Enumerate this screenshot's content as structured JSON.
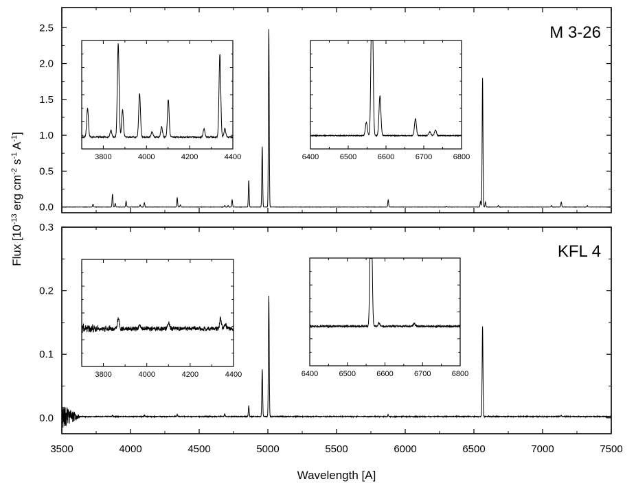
{
  "figure": {
    "xlabel": "Wavelength [A]",
    "ylabel": "Flux [10^-13 erg cm^-2 s^-1 A^-1]",
    "ylabel_parts": [
      {
        "t": "Flux [10",
        "sup": false
      },
      {
        "t": "-13",
        "sup": true
      },
      {
        "t": " erg cm",
        "sup": false
      },
      {
        "t": "-2",
        "sup": true
      },
      {
        "t": " s",
        "sup": false
      },
      {
        "t": "-1",
        "sup": true
      },
      {
        "t": " A",
        "sup": false
      },
      {
        "t": "-1",
        "sup": true
      },
      {
        "t": "]",
        "sup": false
      }
    ]
  },
  "chart_data": [
    {
      "type": "line",
      "panel": "top",
      "title": "M 3-26",
      "xlabel": "Wavelength [A]",
      "ylabel": "Flux [10^-13 erg cm^-2 s^-1 A^-1]",
      "xlim": [
        3500,
        7500
      ],
      "ylim": [
        -0.08,
        2.78
      ],
      "xticks": [
        3500,
        4000,
        4500,
        5000,
        5500,
        6000,
        6500,
        7000,
        7500
      ],
      "yticks": [
        0.0,
        0.5,
        1.0,
        1.5,
        2.0,
        2.5
      ],
      "ytick_labels": [
        "0.0",
        "0.5",
        "1.0",
        "1.5",
        "2.0",
        "2.5"
      ],
      "grid": false,
      "baseline": 0.0,
      "noise": 0.002,
      "line_width": 3,
      "lines": [
        {
          "x": 3727,
          "y": 0.04
        },
        {
          "x": 3869,
          "y": 0.18
        },
        {
          "x": 3889,
          "y": 0.05
        },
        {
          "x": 3968,
          "y": 0.08
        },
        {
          "x": 4070,
          "y": 0.03
        },
        {
          "x": 4101,
          "y": 0.06
        },
        {
          "x": 4340,
          "y": 0.13
        },
        {
          "x": 4363,
          "y": 0.03
        },
        {
          "x": 4686,
          "y": 0.02
        },
        {
          "x": 4711,
          "y": 0.02
        },
        {
          "x": 4740,
          "y": 0.1
        },
        {
          "x": 4861,
          "y": 0.37
        },
        {
          "x": 4959,
          "y": 0.84
        },
        {
          "x": 5007,
          "y": 2.48
        },
        {
          "x": 5876,
          "y": 0.1
        },
        {
          "x": 6300,
          "y": 0.01
        },
        {
          "x": 6548,
          "y": 0.08
        },
        {
          "x": 6563,
          "y": 1.8
        },
        {
          "x": 6584,
          "y": 0.07
        },
        {
          "x": 6678,
          "y": 0.02
        },
        {
          "x": 7065,
          "y": 0.02
        },
        {
          "x": 7136,
          "y": 0.07
        },
        {
          "x": 7325,
          "y": 0.02
        }
      ],
      "insets": [
        {
          "xlim": [
            3700,
            4400
          ],
          "ylim": [
            -0.02,
            0.62
          ],
          "xticks": [
            3800,
            4000,
            4200,
            4400
          ],
          "baseline": 0.05,
          "noise": 0.004,
          "line_width": 4,
          "lines": [
            {
              "x": 3727,
              "y": 0.17
            },
            {
              "x": 3835,
              "y": 0.04
            },
            {
              "x": 3869,
              "y": 0.55
            },
            {
              "x": 3889,
              "y": 0.16
            },
            {
              "x": 3968,
              "y": 0.26
            },
            {
              "x": 4026,
              "y": 0.03
            },
            {
              "x": 4070,
              "y": 0.06
            },
            {
              "x": 4101,
              "y": 0.22
            },
            {
              "x": 4267,
              "y": 0.05
            },
            {
              "x": 4340,
              "y": 0.49
            },
            {
              "x": 4363,
              "y": 0.05
            }
          ]
        },
        {
          "xlim": [
            6400,
            6800
          ],
          "ylim": [
            -0.02,
            0.55
          ],
          "xticks": [
            6400,
            6500,
            6600,
            6700,
            6800
          ],
          "baseline": 0.05,
          "noise": 0.002,
          "line_width": 2.5,
          "lines": [
            {
              "x": 6548,
              "y": 0.07
            },
            {
              "x": 6563,
              "y": 0.9
            },
            {
              "x": 6584,
              "y": 0.21
            },
            {
              "x": 6678,
              "y": 0.09
            },
            {
              "x": 6716,
              "y": 0.02
            },
            {
              "x": 6731,
              "y": 0.03
            }
          ]
        }
      ]
    },
    {
      "type": "line",
      "panel": "bottom",
      "title": "KFL 4",
      "xlabel": "Wavelength [A]",
      "ylabel": "Flux [10^-13 erg cm^-2 s^-1 A^-1]",
      "xlim": [
        3500,
        7500
      ],
      "ylim": [
        -0.025,
        0.3
      ],
      "xticks": [
        3500,
        4000,
        4500,
        5000,
        5500,
        6000,
        6500,
        7000,
        7500
      ],
      "yticks": [
        0.0,
        0.1,
        0.2,
        0.3
      ],
      "ytick_labels": [
        "0.0",
        "0.1",
        "0.2",
        "0.3"
      ],
      "grid": false,
      "baseline": 0.002,
      "noise": 0.0006,
      "blue_noise": {
        "x_end": 3640,
        "amplitude": 0.02
      },
      "line_width": 3,
      "lines": [
        {
          "x": 3869,
          "y": 0.002
        },
        {
          "x": 4101,
          "y": 0.002
        },
        {
          "x": 4340,
          "y": 0.003
        },
        {
          "x": 4686,
          "y": 0.004
        },
        {
          "x": 4861,
          "y": 0.017
        },
        {
          "x": 4959,
          "y": 0.074
        },
        {
          "x": 5007,
          "y": 0.19
        },
        {
          "x": 5876,
          "y": 0.003
        },
        {
          "x": 6563,
          "y": 0.142
        },
        {
          "x": 7136,
          "y": 0.002
        }
      ],
      "insets": [
        {
          "xlim": [
            3700,
            4400
          ],
          "ylim": [
            0.05,
            0.2
          ],
          "xticks": [
            3800,
            4000,
            4200,
            4400
          ],
          "baseline": 0.103,
          "noise": 0.003,
          "blue_noise": {
            "x_end": 3900,
            "amplitude": 0.005
          },
          "line_width": 4,
          "lines": [
            {
              "x": 3869,
              "y": 0.014
            },
            {
              "x": 3968,
              "y": 0.004
            },
            {
              "x": 4101,
              "y": 0.009
            },
            {
              "x": 4340,
              "y": 0.014
            },
            {
              "x": 4363,
              "y": 0.006
            }
          ]
        },
        {
          "xlim": [
            6400,
            6800
          ],
          "ylim": [
            0.05,
            0.2
          ],
          "xticks": [
            6400,
            6500,
            6600,
            6700,
            6800
          ],
          "baseline": 0.105,
          "noise": 0.0012,
          "line_width": 2.5,
          "lines": [
            {
              "x": 6563,
              "y": 0.22
            },
            {
              "x": 6584,
              "y": 0.004
            },
            {
              "x": 6678,
              "y": 0.004
            }
          ]
        }
      ]
    }
  ]
}
